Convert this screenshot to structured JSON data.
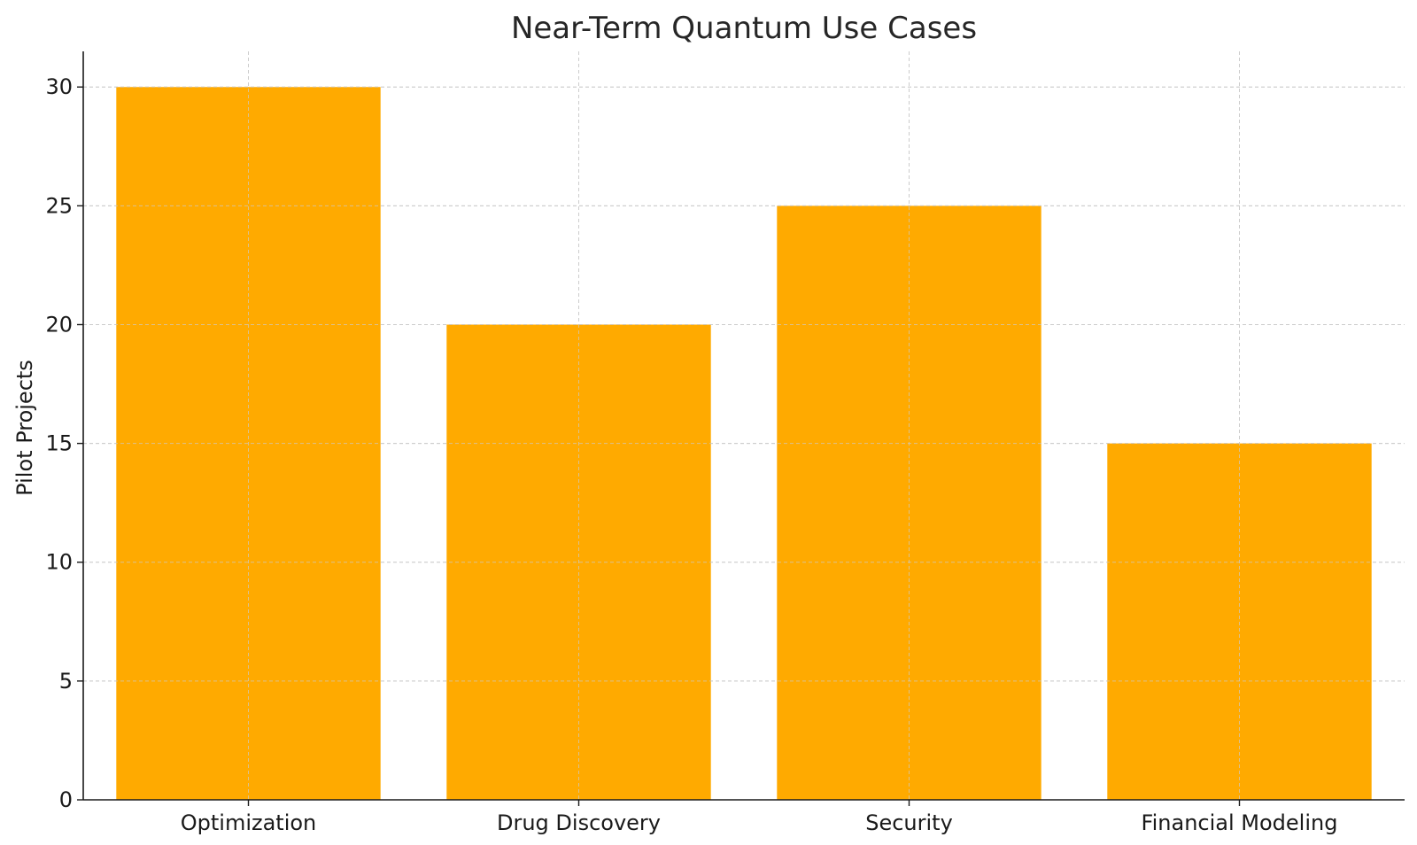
{
  "chart_data": {
    "type": "bar",
    "title": "Near-Term Quantum Use Cases",
    "xlabel": "",
    "ylabel": "Pilot Projects",
    "categories": [
      "Optimization",
      "Drug Discovery",
      "Security",
      "Financial Modeling"
    ],
    "values": [
      30,
      20,
      25,
      15
    ],
    "ylim": [
      0,
      31.5
    ],
    "yticks": [
      0,
      5,
      10,
      15,
      20,
      25,
      30
    ],
    "grid": true,
    "bar_color": "#FFAA00",
    "grid_color": "#cccccc",
    "axis_color": "#1a1a1a"
  }
}
